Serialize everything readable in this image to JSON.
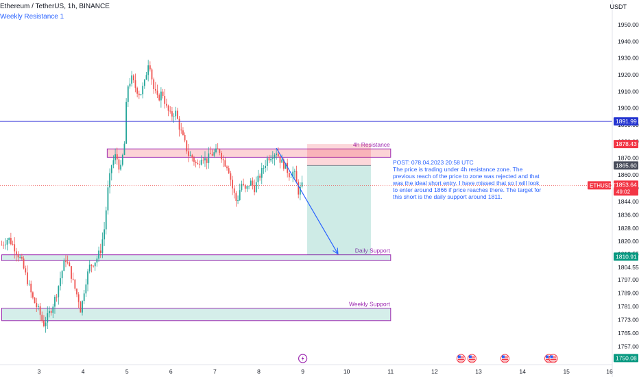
{
  "header": {
    "symbol_line": "Ethereum / TetherUS, 1h, BINANCE",
    "indicator": "Weekly Resistance 1",
    "currency": "USDT"
  },
  "colors": {
    "up": "#26a69a",
    "down": "#ef5350",
    "resistance_line": "#3d3ddb",
    "zone_red": "rgba(242,54,69,0.22)",
    "zone_green": "rgba(8,153,129,0.17)",
    "zone_border": "#9c27b0",
    "annotation": "#2962ff",
    "zone_label": "#9c27b0"
  },
  "chart_data": {
    "type": "candlestick",
    "ylim": [
      1753,
      1961
    ],
    "x_ticks": [
      {
        "label": "3",
        "day": 3
      },
      {
        "label": "4",
        "day": 4
      },
      {
        "label": "5",
        "day": 5
      },
      {
        "label": "6",
        "day": 6
      },
      {
        "label": "7",
        "day": 7
      },
      {
        "label": "8",
        "day": 8
      },
      {
        "label": "9",
        "day": 9
      },
      {
        "label": "10",
        "day": 10
      },
      {
        "label": "11",
        "day": 11
      },
      {
        "label": "12",
        "day": 12
      },
      {
        "label": "13",
        "day": 13
      },
      {
        "label": "14",
        "day": 14
      },
      {
        "label": "15",
        "day": 15
      },
      {
        "label": "16",
        "day": 16
      }
    ],
    "x_range_days": [
      2.15,
      16.0
    ],
    "y_ticks": [
      1757.0,
      1765.0,
      1773.0,
      1781.0,
      1789.0,
      1797.0,
      1804.55,
      1812.55,
      1820.0,
      1828.0,
      1836.0,
      1844.0,
      1852.0,
      1860.0,
      1870.0,
      1880.0,
      1890.0,
      1900.0,
      1910.0,
      1920.0,
      1930.0,
      1940.0,
      1950.0
    ],
    "y_tick_labels": [
      "1757.00",
      "1765.00",
      "1773.00",
      "1781.00",
      "1789.00",
      "1797.00",
      "1804.55",
      "1812.55",
      "1820.00",
      "1828.00",
      "1836.00",
      "1844.00",
      "1852.00",
      "1860.00",
      "1870.00",
      "1880.00",
      "1890.00",
      "1900.00",
      "1910.00",
      "1920.00",
      "1930.00",
      "1940.00",
      "1950.00"
    ],
    "price_labels": [
      {
        "text": "1891.99",
        "value": 1891.99,
        "style": "blue"
      },
      {
        "text": "1878.43",
        "value": 1878.43,
        "style": "red"
      },
      {
        "text": "1865.60",
        "value": 1865.6,
        "style": "gray"
      },
      {
        "text": "1810.91",
        "value": 1810.91,
        "style": "green"
      },
      {
        "text": "1750.08",
        "value": 1750.08,
        "style": "green"
      }
    ],
    "last_price": {
      "symbol": "ETHUSDT",
      "price": "1853.64",
      "countdown": "49:02",
      "value": 1853.64
    },
    "resistance_line": 1891.99,
    "zones": [
      {
        "name": "4h Resistance",
        "low": 1870.5,
        "high": 1875.5,
        "start_day": 4.55,
        "end_day": 11.0,
        "kind": "red"
      },
      {
        "name": "Daily Support",
        "low": 1808.5,
        "high": 1812.0,
        "start_day": 2.15,
        "end_day": 11.0,
        "kind": "green"
      },
      {
        "name": "Weekly Support",
        "low": 1772.5,
        "high": 1780.0,
        "start_day": 2.15,
        "end_day": 11.0,
        "kind": "green"
      }
    ],
    "position": {
      "start_day": 9.1,
      "end_day": 10.55,
      "stop": 1878.43,
      "entry": 1865.6,
      "target": 1812.0
    },
    "arrow": {
      "from": {
        "day": 8.4,
        "price": 1876.0
      },
      "to": {
        "day": 9.8,
        "price": 1812.5
      }
    },
    "annotation": [
      "POST: 078.04.2023 20:58 UTC",
      "The price is trading under 4h resistance zone. The",
      "previous reach of the price to zone was rejected and that",
      "was the ideal short entry. I have missed that so I will look",
      "to enter around 1866 if price reaches there. The target for",
      "this short is the daily support around 1811."
    ],
    "price_path": [
      [
        2.15,
        1818
      ],
      [
        2.3,
        1822
      ],
      [
        2.45,
        1816
      ],
      [
        2.6,
        1808
      ],
      [
        2.75,
        1795
      ],
      [
        2.85,
        1786
      ],
      [
        3.0,
        1778
      ],
      [
        3.1,
        1770
      ],
      [
        3.2,
        1775
      ],
      [
        3.3,
        1781
      ],
      [
        3.4,
        1789
      ],
      [
        3.5,
        1800
      ],
      [
        3.6,
        1810
      ],
      [
        3.7,
        1803
      ],
      [
        3.8,
        1793
      ],
      [
        3.9,
        1785
      ],
      [
        3.95,
        1778
      ],
      [
        4.05,
        1795
      ],
      [
        4.15,
        1805
      ],
      [
        4.3,
        1809
      ],
      [
        4.4,
        1815
      ],
      [
        4.5,
        1830
      ],
      [
        4.55,
        1848
      ],
      [
        4.65,
        1866
      ],
      [
        4.75,
        1872
      ],
      [
        4.85,
        1862
      ],
      [
        4.95,
        1880
      ],
      [
        5.0,
        1912
      ],
      [
        5.1,
        1918
      ],
      [
        5.2,
        1912
      ],
      [
        5.3,
        1908
      ],
      [
        5.4,
        1915
      ],
      [
        5.5,
        1930
      ],
      [
        5.6,
        1912
      ],
      [
        5.7,
        1905
      ],
      [
        5.8,
        1910
      ],
      [
        5.9,
        1900
      ],
      [
        6.0,
        1895
      ],
      [
        6.1,
        1898
      ],
      [
        6.2,
        1888
      ],
      [
        6.3,
        1880
      ],
      [
        6.4,
        1872
      ],
      [
        6.5,
        1870
      ],
      [
        6.6,
        1865
      ],
      [
        6.7,
        1872
      ],
      [
        6.8,
        1868
      ],
      [
        6.9,
        1872
      ],
      [
        7.0,
        1873
      ],
      [
        7.1,
        1875
      ],
      [
        7.2,
        1868
      ],
      [
        7.3,
        1865
      ],
      [
        7.4,
        1852
      ],
      [
        7.5,
        1843
      ],
      [
        7.6,
        1855
      ],
      [
        7.7,
        1850
      ],
      [
        7.8,
        1856
      ],
      [
        7.9,
        1852
      ],
      [
        8.0,
        1858
      ],
      [
        8.1,
        1864
      ],
      [
        8.2,
        1870
      ],
      [
        8.3,
        1872
      ],
      [
        8.4,
        1874
      ],
      [
        8.5,
        1868
      ],
      [
        8.6,
        1865
      ],
      [
        8.7,
        1860
      ],
      [
        8.8,
        1862
      ],
      [
        8.9,
        1850
      ],
      [
        9.0,
        1853.64
      ]
    ]
  },
  "footer_icons": [
    {
      "day": 9.0,
      "kind": "lightning-icon"
    },
    {
      "day": 12.6,
      "kind": "us-flag-icon"
    },
    {
      "day": 12.85,
      "kind": "us-flag-icon"
    },
    {
      "day": 13.6,
      "kind": "us-flag-icon"
    },
    {
      "day": 14.6,
      "kind": "us-flag-icon"
    },
    {
      "day": 14.7,
      "kind": "us-flag-icon"
    }
  ]
}
